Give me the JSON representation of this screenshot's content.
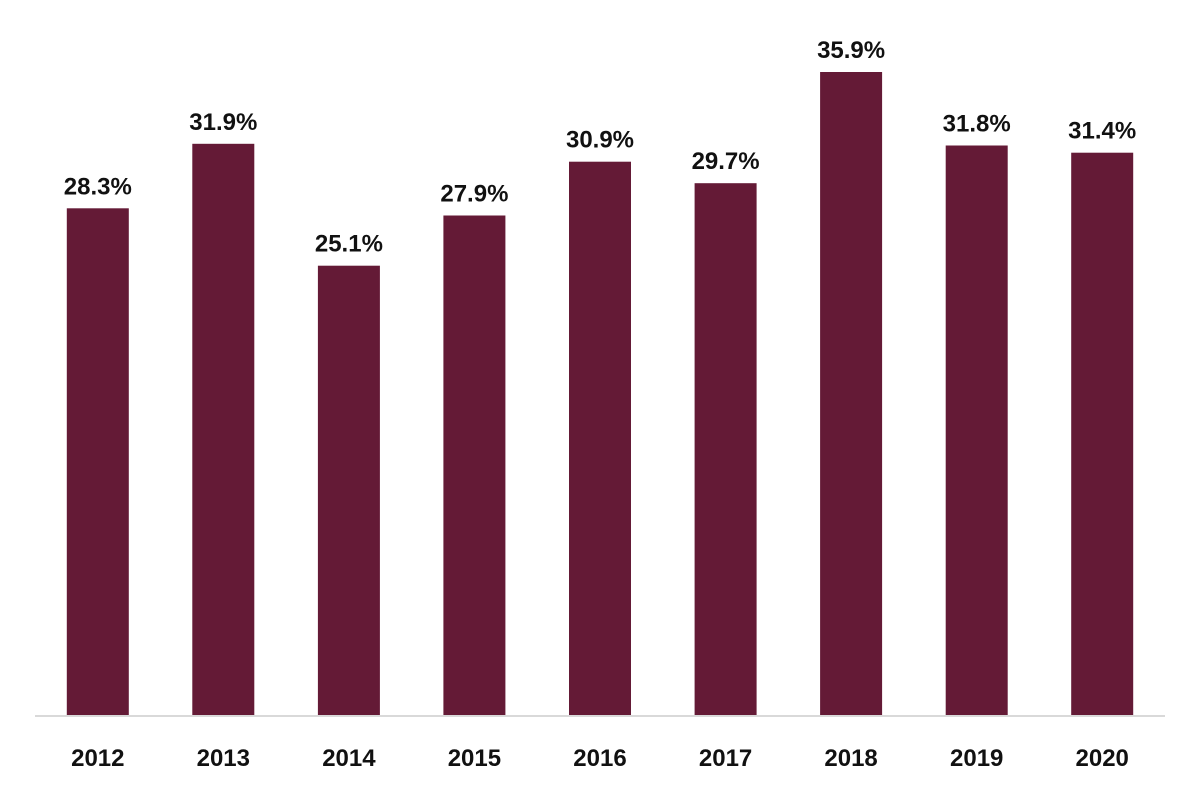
{
  "chart_data": {
    "type": "bar",
    "title": "",
    "xlabel": "",
    "ylabel": "",
    "categories": [
      "2012",
      "2013",
      "2014",
      "2015",
      "2016",
      "2017",
      "2018",
      "2019",
      "2020"
    ],
    "values": [
      28.3,
      31.9,
      25.1,
      27.9,
      30.9,
      29.7,
      35.9,
      31.8,
      31.4
    ],
    "data_labels": [
      "28.3%",
      "31.9%",
      "25.1%",
      "27.9%",
      "30.9%",
      "29.7%",
      "35.9%",
      "31.8%",
      "31.4%"
    ],
    "bar_color": "#641A36",
    "ylim": [
      0,
      35.9
    ],
    "grid": false,
    "legend": "none"
  }
}
